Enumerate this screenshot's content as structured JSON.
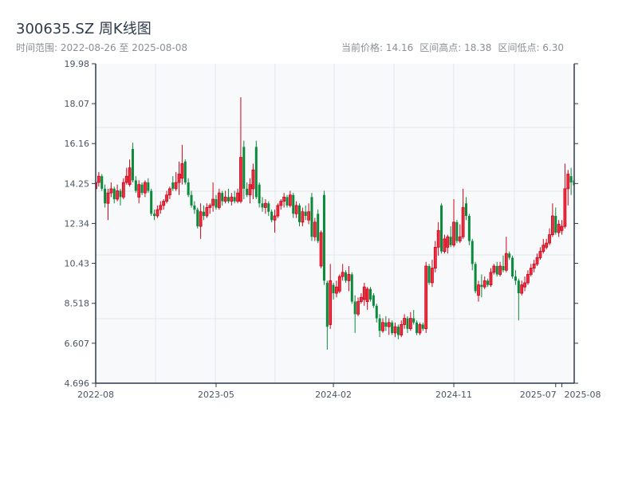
{
  "header": {
    "title": "300635.SZ 周K线图",
    "range_label": "时间范围: 2022-08-26 至 2025-08-08",
    "current_price": "当前价格: 14.16",
    "period_high": "区间高点: 18.38",
    "period_low": "区间低点: 6.30"
  },
  "colors": {
    "up": "#d0021b",
    "down": "#0a8a3a",
    "axis": "#2d3a4a",
    "grid": "#e3e6ea",
    "plot_bg": "#f7f9fb"
  },
  "chart_data": {
    "type": "candlestick",
    "title": "300635.SZ 周K线图",
    "xlabel": "",
    "ylabel": "",
    "ylim": [
      4.696,
      19.98
    ],
    "y_ticks": [
      "19.98",
      "18.07",
      "16.16",
      "14.25",
      "12.34",
      "10.43",
      "8.518",
      "6.607",
      "4.696"
    ],
    "x_ticks": [
      {
        "label": "2022-08",
        "index": 0
      },
      {
        "label": "2023-05",
        "index": 39
      },
      {
        "label": "2024-02",
        "index": 77
      },
      {
        "label": "2024-11",
        "index": 116
      },
      {
        "label": "2025-07",
        "index": 149
      },
      {
        "label": "2025-08",
        "index": 151
      }
    ],
    "grid": true,
    "ohlc": [
      [
        14.0,
        14.6,
        13.8,
        14.3
      ],
      [
        14.3,
        14.8,
        14.1,
        14.6
      ],
      [
        14.6,
        14.7,
        13.9,
        14.0
      ],
      [
        14.0,
        14.2,
        13.1,
        13.3
      ],
      [
        13.3,
        14.0,
        12.5,
        13.8
      ],
      [
        13.8,
        14.3,
        13.6,
        14.0
      ],
      [
        14.0,
        14.1,
        13.3,
        13.5
      ],
      [
        13.5,
        14.2,
        13.4,
        13.9
      ],
      [
        13.9,
        14.0,
        13.2,
        13.6
      ],
      [
        13.6,
        14.5,
        13.5,
        14.3
      ],
      [
        14.3,
        15.0,
        14.2,
        14.6
      ],
      [
        14.2,
        15.4,
        14.1,
        15.0
      ],
      [
        15.9,
        16.2,
        14.3,
        14.4
      ],
      [
        14.4,
        14.6,
        13.8,
        13.9
      ],
      [
        13.6,
        14.4,
        13.3,
        14.2
      ],
      [
        14.2,
        14.3,
        13.7,
        13.8
      ],
      [
        13.8,
        14.4,
        13.6,
        14.3
      ],
      [
        14.3,
        14.5,
        13.8,
        13.9
      ],
      [
        13.9,
        14.0,
        12.7,
        12.8
      ],
      [
        12.8,
        13.0,
        12.5,
        12.7
      ],
      [
        12.7,
        13.2,
        12.6,
        13.0
      ],
      [
        13.0,
        13.4,
        12.8,
        13.2
      ],
      [
        13.2,
        13.5,
        13.0,
        13.4
      ],
      [
        13.4,
        13.9,
        13.3,
        13.7
      ],
      [
        13.7,
        14.1,
        13.5,
        14.0
      ],
      [
        14.3,
        14.6,
        13.9,
        14.0
      ],
      [
        14.0,
        14.8,
        13.9,
        14.3
      ],
      [
        14.3,
        15.3,
        13.7,
        14.7
      ],
      [
        14.5,
        16.1,
        14.2,
        15.2
      ],
      [
        15.3,
        15.4,
        14.2,
        14.3
      ],
      [
        14.3,
        14.5,
        13.6,
        13.7
      ],
      [
        13.7,
        13.9,
        13.1,
        13.2
      ],
      [
        13.2,
        13.4,
        12.8,
        13.0
      ],
      [
        13.0,
        13.1,
        12.1,
        12.2
      ],
      [
        12.2,
        13.3,
        11.6,
        12.9
      ],
      [
        12.9,
        13.2,
        12.5,
        12.7
      ],
      [
        12.7,
        13.3,
        12.6,
        13.1
      ],
      [
        13.1,
        13.3,
        12.8,
        13.2
      ],
      [
        13.2,
        14.3,
        12.9,
        13.5
      ],
      [
        13.5,
        13.7,
        13.0,
        13.1
      ],
      [
        13.1,
        14.0,
        13.0,
        13.8
      ],
      [
        13.8,
        13.9,
        13.2,
        13.4
      ],
      [
        13.4,
        13.9,
        13.3,
        13.6
      ],
      [
        13.6,
        14.0,
        13.3,
        13.4
      ],
      [
        13.4,
        13.8,
        13.2,
        13.6
      ],
      [
        13.6,
        13.9,
        13.3,
        13.4
      ],
      [
        13.4,
        14.0,
        13.3,
        13.8
      ],
      [
        13.4,
        18.38,
        13.3,
        15.5
      ],
      [
        16.0,
        16.3,
        13.5,
        14.0
      ],
      [
        14.0,
        14.3,
        13.6,
        13.7
      ],
      [
        13.7,
        14.5,
        13.3,
        14.2
      ],
      [
        14.0,
        15.2,
        13.5,
        14.9
      ],
      [
        16.0,
        16.3,
        13.5,
        13.6
      ],
      [
        14.2,
        14.3,
        13.1,
        13.3
      ],
      [
        13.3,
        13.6,
        12.9,
        13.1
      ],
      [
        13.1,
        13.5,
        12.8,
        13.3
      ],
      [
        13.3,
        13.4,
        12.7,
        12.9
      ],
      [
        12.9,
        13.0,
        12.4,
        12.5
      ],
      [
        12.5,
        13.0,
        11.9,
        12.7
      ],
      [
        12.7,
        13.3,
        12.6,
        13.2
      ],
      [
        13.2,
        13.5,
        13.0,
        13.4
      ],
      [
        13.4,
        13.8,
        13.1,
        13.6
      ],
      [
        13.6,
        13.7,
        13.1,
        13.2
      ],
      [
        13.2,
        13.9,
        13.1,
        13.7
      ],
      [
        13.7,
        13.8,
        12.6,
        12.8
      ],
      [
        12.8,
        13.4,
        12.6,
        13.2
      ],
      [
        13.2,
        13.3,
        12.2,
        12.4
      ],
      [
        12.4,
        13.1,
        12.2,
        12.9
      ],
      [
        12.9,
        13.2,
        12.5,
        12.7
      ],
      [
        12.5,
        13.3,
        12.3,
        12.9
      ],
      [
        13.6,
        13.8,
        11.5,
        11.7
      ],
      [
        11.7,
        12.6,
        11.5,
        12.4
      ],
      [
        12.8,
        13.0,
        11.4,
        11.5
      ],
      [
        10.3,
        12.0,
        10.2,
        11.9
      ],
      [
        13.7,
        13.9,
        9.4,
        9.6
      ],
      [
        9.5,
        9.6,
        6.3,
        7.4
      ],
      [
        7.5,
        10.4,
        7.3,
        9.6
      ],
      [
        9.4,
        9.5,
        8.7,
        9.0
      ],
      [
        9.0,
        9.6,
        8.8,
        9.3
      ],
      [
        9.1,
        9.9,
        9.0,
        9.8
      ],
      [
        9.8,
        10.4,
        9.6,
        10.0
      ],
      [
        10.0,
        10.1,
        9.5,
        9.6
      ],
      [
        9.6,
        10.3,
        9.1,
        9.9
      ],
      [
        9.9,
        10.0,
        8.5,
        8.6
      ],
      [
        8.6,
        8.9,
        7.1,
        8.0
      ],
      [
        8.0,
        8.8,
        7.9,
        8.6
      ],
      [
        8.6,
        9.0,
        8.5,
        8.8
      ],
      [
        8.7,
        9.5,
        8.4,
        9.3
      ],
      [
        8.6,
        9.3,
        8.2,
        9.2
      ],
      [
        9.2,
        9.3,
        8.6,
        8.7
      ],
      [
        8.9,
        9.0,
        8.3,
        8.4
      ],
      [
        8.4,
        8.5,
        7.6,
        7.8
      ],
      [
        7.8,
        8.0,
        6.9,
        7.2
      ],
      [
        7.2,
        7.8,
        7.1,
        7.6
      ],
      [
        7.6,
        7.9,
        7.2,
        7.4
      ],
      [
        7.4,
        7.8,
        7.0,
        7.6
      ],
      [
        7.6,
        7.7,
        7.0,
        7.1
      ],
      [
        7.1,
        7.6,
        6.9,
        7.4
      ],
      [
        7.4,
        7.5,
        6.8,
        7.0
      ],
      [
        7.0,
        7.7,
        6.9,
        7.5
      ],
      [
        7.5,
        8.0,
        7.3,
        7.8
      ],
      [
        7.8,
        7.9,
        7.1,
        7.3
      ],
      [
        7.3,
        8.1,
        7.2,
        7.8
      ],
      [
        7.8,
        8.2,
        7.5,
        7.6
      ],
      [
        7.6,
        7.7,
        7.0,
        7.1
      ],
      [
        7.1,
        7.6,
        7.0,
        7.5
      ],
      [
        7.5,
        7.6,
        7.2,
        7.3
      ],
      [
        7.3,
        10.5,
        7.1,
        10.3
      ],
      [
        10.3,
        10.4,
        9.4,
        9.5
      ],
      [
        9.5,
        10.6,
        9.3,
        10.2
      ],
      [
        10.2,
        11.5,
        10.0,
        11.2
      ],
      [
        11.2,
        12.4,
        10.8,
        12.0
      ],
      [
        13.2,
        13.3,
        10.9,
        11.0
      ],
      [
        11.0,
        11.8,
        10.9,
        11.6
      ],
      [
        11.2,
        11.8,
        10.9,
        11.7
      ],
      [
        11.7,
        12.2,
        11.2,
        11.3
      ],
      [
        11.3,
        13.5,
        11.2,
        12.4
      ],
      [
        12.4,
        12.5,
        11.4,
        11.5
      ],
      [
        11.5,
        12.3,
        11.4,
        11.7
      ],
      [
        11.7,
        14.0,
        11.6,
        13.1
      ],
      [
        13.3,
        13.6,
        12.5,
        12.7
      ],
      [
        12.7,
        12.8,
        11.3,
        11.5
      ],
      [
        11.5,
        11.6,
        10.1,
        10.4
      ],
      [
        10.4,
        10.5,
        9.0,
        9.1
      ],
      [
        8.9,
        9.6,
        8.6,
        9.4
      ],
      [
        9.4,
        9.9,
        8.8,
        9.3
      ],
      [
        9.3,
        9.8,
        9.2,
        9.6
      ],
      [
        9.6,
        9.7,
        9.3,
        9.4
      ],
      [
        9.4,
        10.2,
        9.3,
        10.0
      ],
      [
        10.0,
        10.4,
        9.9,
        10.3
      ],
      [
        10.3,
        10.5,
        9.8,
        9.9
      ],
      [
        9.9,
        10.5,
        9.8,
        10.3
      ],
      [
        10.3,
        10.8,
        10.0,
        10.1
      ],
      [
        10.1,
        11.7,
        10.0,
        10.9
      ],
      [
        10.9,
        11.0,
        10.6,
        10.7
      ],
      [
        10.7,
        10.8,
        9.7,
        9.8
      ],
      [
        9.8,
        10.1,
        9.4,
        9.6
      ],
      [
        9.6,
        9.7,
        7.7,
        9.0
      ],
      [
        9.0,
        9.6,
        8.9,
        9.4
      ],
      [
        9.3,
        9.8,
        9.1,
        9.5
      ],
      [
        9.5,
        10.1,
        9.4,
        9.9
      ],
      [
        9.9,
        10.4,
        9.8,
        10.2
      ],
      [
        10.2,
        10.6,
        10.0,
        10.4
      ],
      [
        10.4,
        10.9,
        10.3,
        10.7
      ],
      [
        10.7,
        11.2,
        10.6,
        11.0
      ],
      [
        11.0,
        11.6,
        10.9,
        11.3
      ],
      [
        11.2,
        11.6,
        11.1,
        11.4
      ],
      [
        11.4,
        12.1,
        11.3,
        11.8
      ],
      [
        11.8,
        13.3,
        11.7,
        12.7
      ],
      [
        12.7,
        13.1,
        11.8,
        11.9
      ],
      [
        11.9,
        12.5,
        11.7,
        12.3
      ],
      [
        12.0,
        12.5,
        11.8,
        12.2
      ],
      [
        12.2,
        15.2,
        12.1,
        14.0
      ],
      [
        14.0,
        14.9,
        13.2,
        14.7
      ],
      [
        14.6,
        15.0,
        13.7,
        14.3
      ],
      [
        14.4,
        14.9,
        13.9,
        14.16
      ]
    ]
  }
}
